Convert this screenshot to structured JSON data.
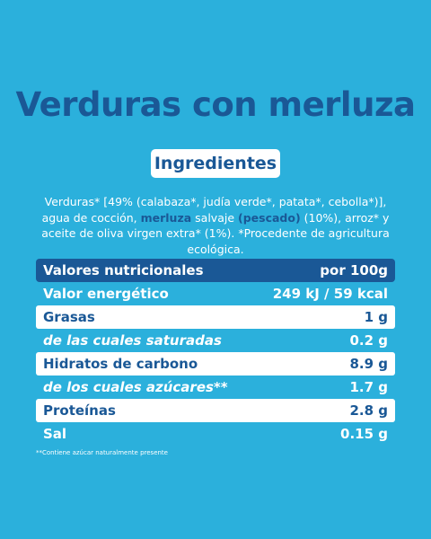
{
  "title": "Verduras con merluza",
  "ingredients": {
    "heading": "Ingredientes",
    "segments": [
      {
        "text": "Verduras* [49% (calabaza*, judía verde*, patata*, cebolla*)], agua de cocción, ",
        "bold": false
      },
      {
        "text": "merluza",
        "bold": true
      },
      {
        "text": " salvaje ",
        "bold": false
      },
      {
        "text": "(pescado)",
        "bold": true
      },
      {
        "text": " (10%), arroz* y aceite de oliva virgen extra* (1%). *Procedente de agricultura ecológica.",
        "bold": false
      }
    ]
  },
  "nutrition": {
    "header": {
      "label": "Valores nutricionales",
      "value": "por 100g"
    },
    "rows": [
      {
        "label": "Valor energético",
        "value": "249 kJ / 59 kcal",
        "highlight": false,
        "italic": false
      },
      {
        "label": "Grasas",
        "value": "1 g",
        "highlight": true,
        "italic": false
      },
      {
        "label": "de las cuales saturadas",
        "value": "0.2 g",
        "highlight": false,
        "italic": true
      },
      {
        "label": "Hidratos de carbono",
        "value": "8.9 g",
        "highlight": true,
        "italic": false
      },
      {
        "label": "de los cuales azúcares**",
        "value": "1.7 g",
        "highlight": false,
        "italic": true
      },
      {
        "label": "Proteínas",
        "value": "2.8 g",
        "highlight": true,
        "italic": false
      },
      {
        "label": "Sal",
        "value": "0.15 g",
        "highlight": false,
        "italic": false
      }
    ]
  },
  "footnote": "**Contiene azúcar naturalmente presente"
}
